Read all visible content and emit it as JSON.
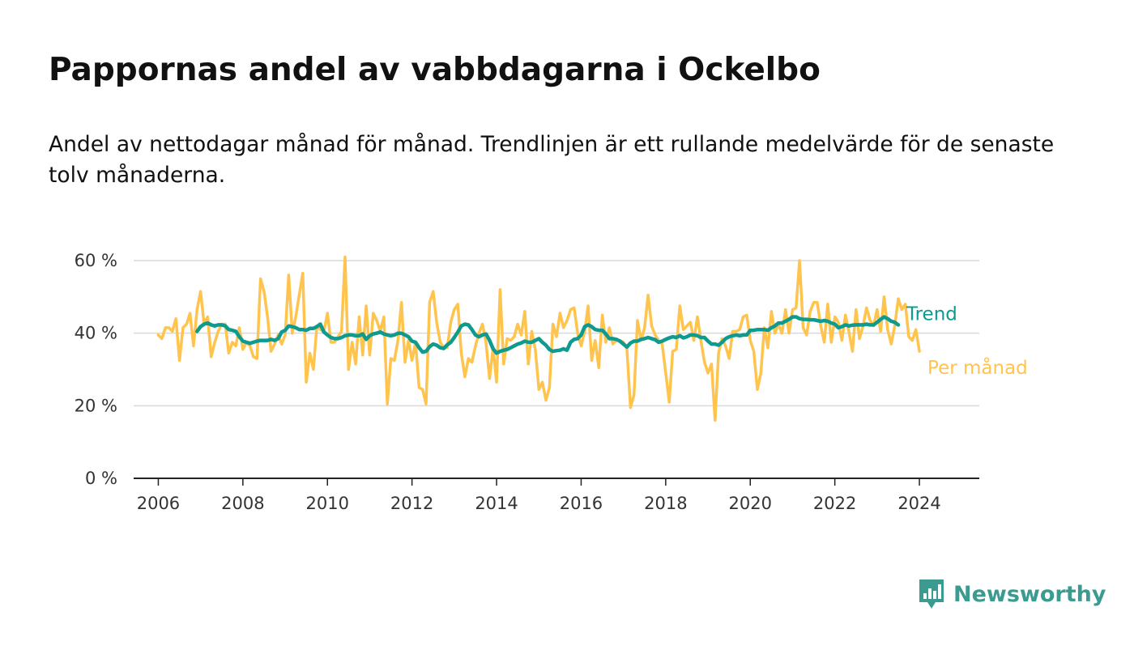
{
  "header": {
    "title": "Pappornas andel av vabbdagarna i Ockelbo",
    "subtitle": "Andel av nettodagar månad för månad. Trendlinjen är ett rullande medelvärde för de senaste tolv månaderna."
  },
  "brand": {
    "name": "Newsworthy",
    "icon": "newsworthy-logo-icon",
    "color": "#3c9b91"
  },
  "chart_data": {
    "type": "line",
    "xlim": [
      "2005-06",
      "2025-06"
    ],
    "ylim": [
      0,
      60
    ],
    "y_ticks": [
      0,
      20,
      40,
      60
    ],
    "y_tick_labels": [
      "0 %",
      "20 %",
      "40 %",
      "60 %"
    ],
    "x_ticks": [
      2006,
      2008,
      2010,
      2012,
      2014,
      2016,
      2018,
      2020,
      2022,
      2024
    ],
    "x_tick_labels": [
      "2006",
      "2008",
      "2010",
      "2012",
      "2014",
      "2016",
      "2018",
      "2020",
      "2022",
      "2024"
    ],
    "grid": true,
    "legend": "end-of-line labels",
    "series": [
      {
        "name": "Per månad",
        "color": "#ffc44d",
        "start": "2006-01",
        "values": [
          39.5,
          38.5,
          41.5,
          41.5,
          40.5,
          44,
          32.5,
          41.5,
          42.5,
          45.5,
          36.5,
          46.5,
          51.5,
          42.5,
          44.5,
          33.5,
          37.5,
          40.5,
          42.5,
          42.5,
          34.5,
          37.5,
          36.5,
          41.5,
          35.5,
          37.5,
          36.5,
          33.5,
          33,
          55,
          51.5,
          44.5,
          35,
          37,
          39.5,
          37,
          39.5,
          56,
          40,
          44.5,
          50.5,
          56.5,
          26.5,
          34.5,
          30,
          42,
          41,
          40.5,
          45.5,
          37.5,
          37.5,
          39,
          40.5,
          61,
          30,
          37.5,
          31.5,
          44.5,
          34,
          47.5,
          34,
          45.5,
          43.5,
          40.5,
          44.5,
          20.5,
          33,
          32.5,
          38,
          48.5,
          32,
          38,
          32.5,
          37.5,
          25,
          24.5,
          20.5,
          48.5,
          51.5,
          43,
          37.5,
          36,
          36,
          43,
          46.5,
          48,
          34.5,
          28,
          33,
          32,
          36.5,
          40,
          42.5,
          37.5,
          27.5,
          36,
          26.5,
          52,
          31.5,
          38.5,
          38,
          39,
          42.5,
          39.5,
          46,
          31.5,
          40.5,
          35.5,
          24.5,
          26.5,
          21.5,
          25,
          42.5,
          39,
          45.5,
          41.5,
          43.5,
          46.5,
          47,
          40,
          36.5,
          40.5,
          47.5,
          32.5,
          38,
          30.5,
          45,
          37.5,
          41.5,
          37,
          38,
          38,
          37.5,
          35.5,
          19.5,
          23,
          43.5,
          38,
          41.5,
          50.5,
          42,
          39.5,
          38,
          37,
          29,
          21,
          35,
          35.5,
          47.5,
          41,
          42,
          43,
          38,
          44.5,
          38,
          32,
          29,
          31.5,
          16,
          34.5,
          38.5,
          36.5,
          33,
          40.5,
          40.5,
          41,
          44.5,
          45,
          38,
          35,
          24.5,
          29,
          41.5,
          36,
          46,
          40,
          42.5,
          40,
          46.5,
          40,
          46.5,
          47,
          60,
          41.5,
          39.5,
          46,
          48.5,
          48.5,
          42,
          37.5,
          48,
          37.5,
          44.5,
          43,
          38,
          45,
          40.5,
          35,
          46.5,
          38.5,
          42,
          47,
          43.5,
          42,
          46.5,
          40.5,
          50,
          41,
          37,
          42,
          49.5,
          46.5,
          48,
          39,
          38,
          41,
          35
        ]
      },
      {
        "name": "Trend",
        "color": "#0e9a8e",
        "start": "2006-12",
        "values": [
          40.5,
          41.8,
          42.5,
          42.8,
          42.3,
          42,
          42.3,
          42.3,
          42,
          41,
          40.8,
          40.5,
          39,
          37.8,
          37.5,
          37.2,
          37.5,
          37.8,
          38,
          38,
          38,
          38.3,
          38,
          38.5,
          40.3,
          40.8,
          42,
          41.8,
          41.5,
          41,
          41,
          40.8,
          41.3,
          41.3,
          41.8,
          42.5,
          40.3,
          39.5,
          38.8,
          38.5,
          38.5,
          38.8,
          39.3,
          39.5,
          39.5,
          39.3,
          39.3,
          39.8,
          38.3,
          39.3,
          39.8,
          40,
          40.3,
          39.8,
          39.5,
          39.3,
          39.5,
          40,
          40,
          39.5,
          39,
          37.8,
          37.5,
          36,
          34.8,
          35,
          36.3,
          37,
          36.7,
          36,
          35.8,
          36.8,
          37.5,
          38.8,
          40.3,
          42,
          42.5,
          42.3,
          41,
          39.5,
          39,
          39.5,
          39.8,
          38,
          35.7,
          34.5,
          35,
          35.3,
          35.5,
          36,
          36.5,
          37,
          37.3,
          37.8,
          37.5,
          37.5,
          38,
          38.5,
          37.5,
          36.7,
          35.5,
          35,
          35.2,
          35.3,
          35.7,
          35.3,
          37.5,
          38.3,
          38.5,
          39.5,
          41.8,
          42.3,
          41.8,
          41,
          40.8,
          40.8,
          39.8,
          38.5,
          38.5,
          38.3,
          37.8,
          37,
          36.2,
          37.3,
          37.8,
          37.8,
          38.3,
          38.5,
          38.8,
          38.5,
          38.2,
          37.5,
          37.8,
          38.3,
          38.7,
          39,
          38.8,
          39.3,
          38.7,
          39,
          39.5,
          39.5,
          39.3,
          38.8,
          38.8,
          37.8,
          37,
          37,
          36.7,
          37.5,
          38.5,
          39,
          39.3,
          39.5,
          39.3,
          39.5,
          39.5,
          40.8,
          40.8,
          41,
          41,
          41,
          40.8,
          41.5,
          42,
          42.8,
          42.8,
          43.3,
          43.8,
          44.5,
          44.5,
          44,
          43.8,
          43.8,
          43.7,
          43.7,
          43.5,
          43.3,
          43.5,
          43.3,
          42.8,
          42.5,
          41.5,
          41.8,
          42.3,
          42,
          42.2,
          42.3,
          42.3,
          42.3,
          42.5,
          42.3,
          42.3,
          43,
          43.8,
          44.5,
          44,
          43.3,
          43,
          42.3
        ]
      }
    ]
  }
}
